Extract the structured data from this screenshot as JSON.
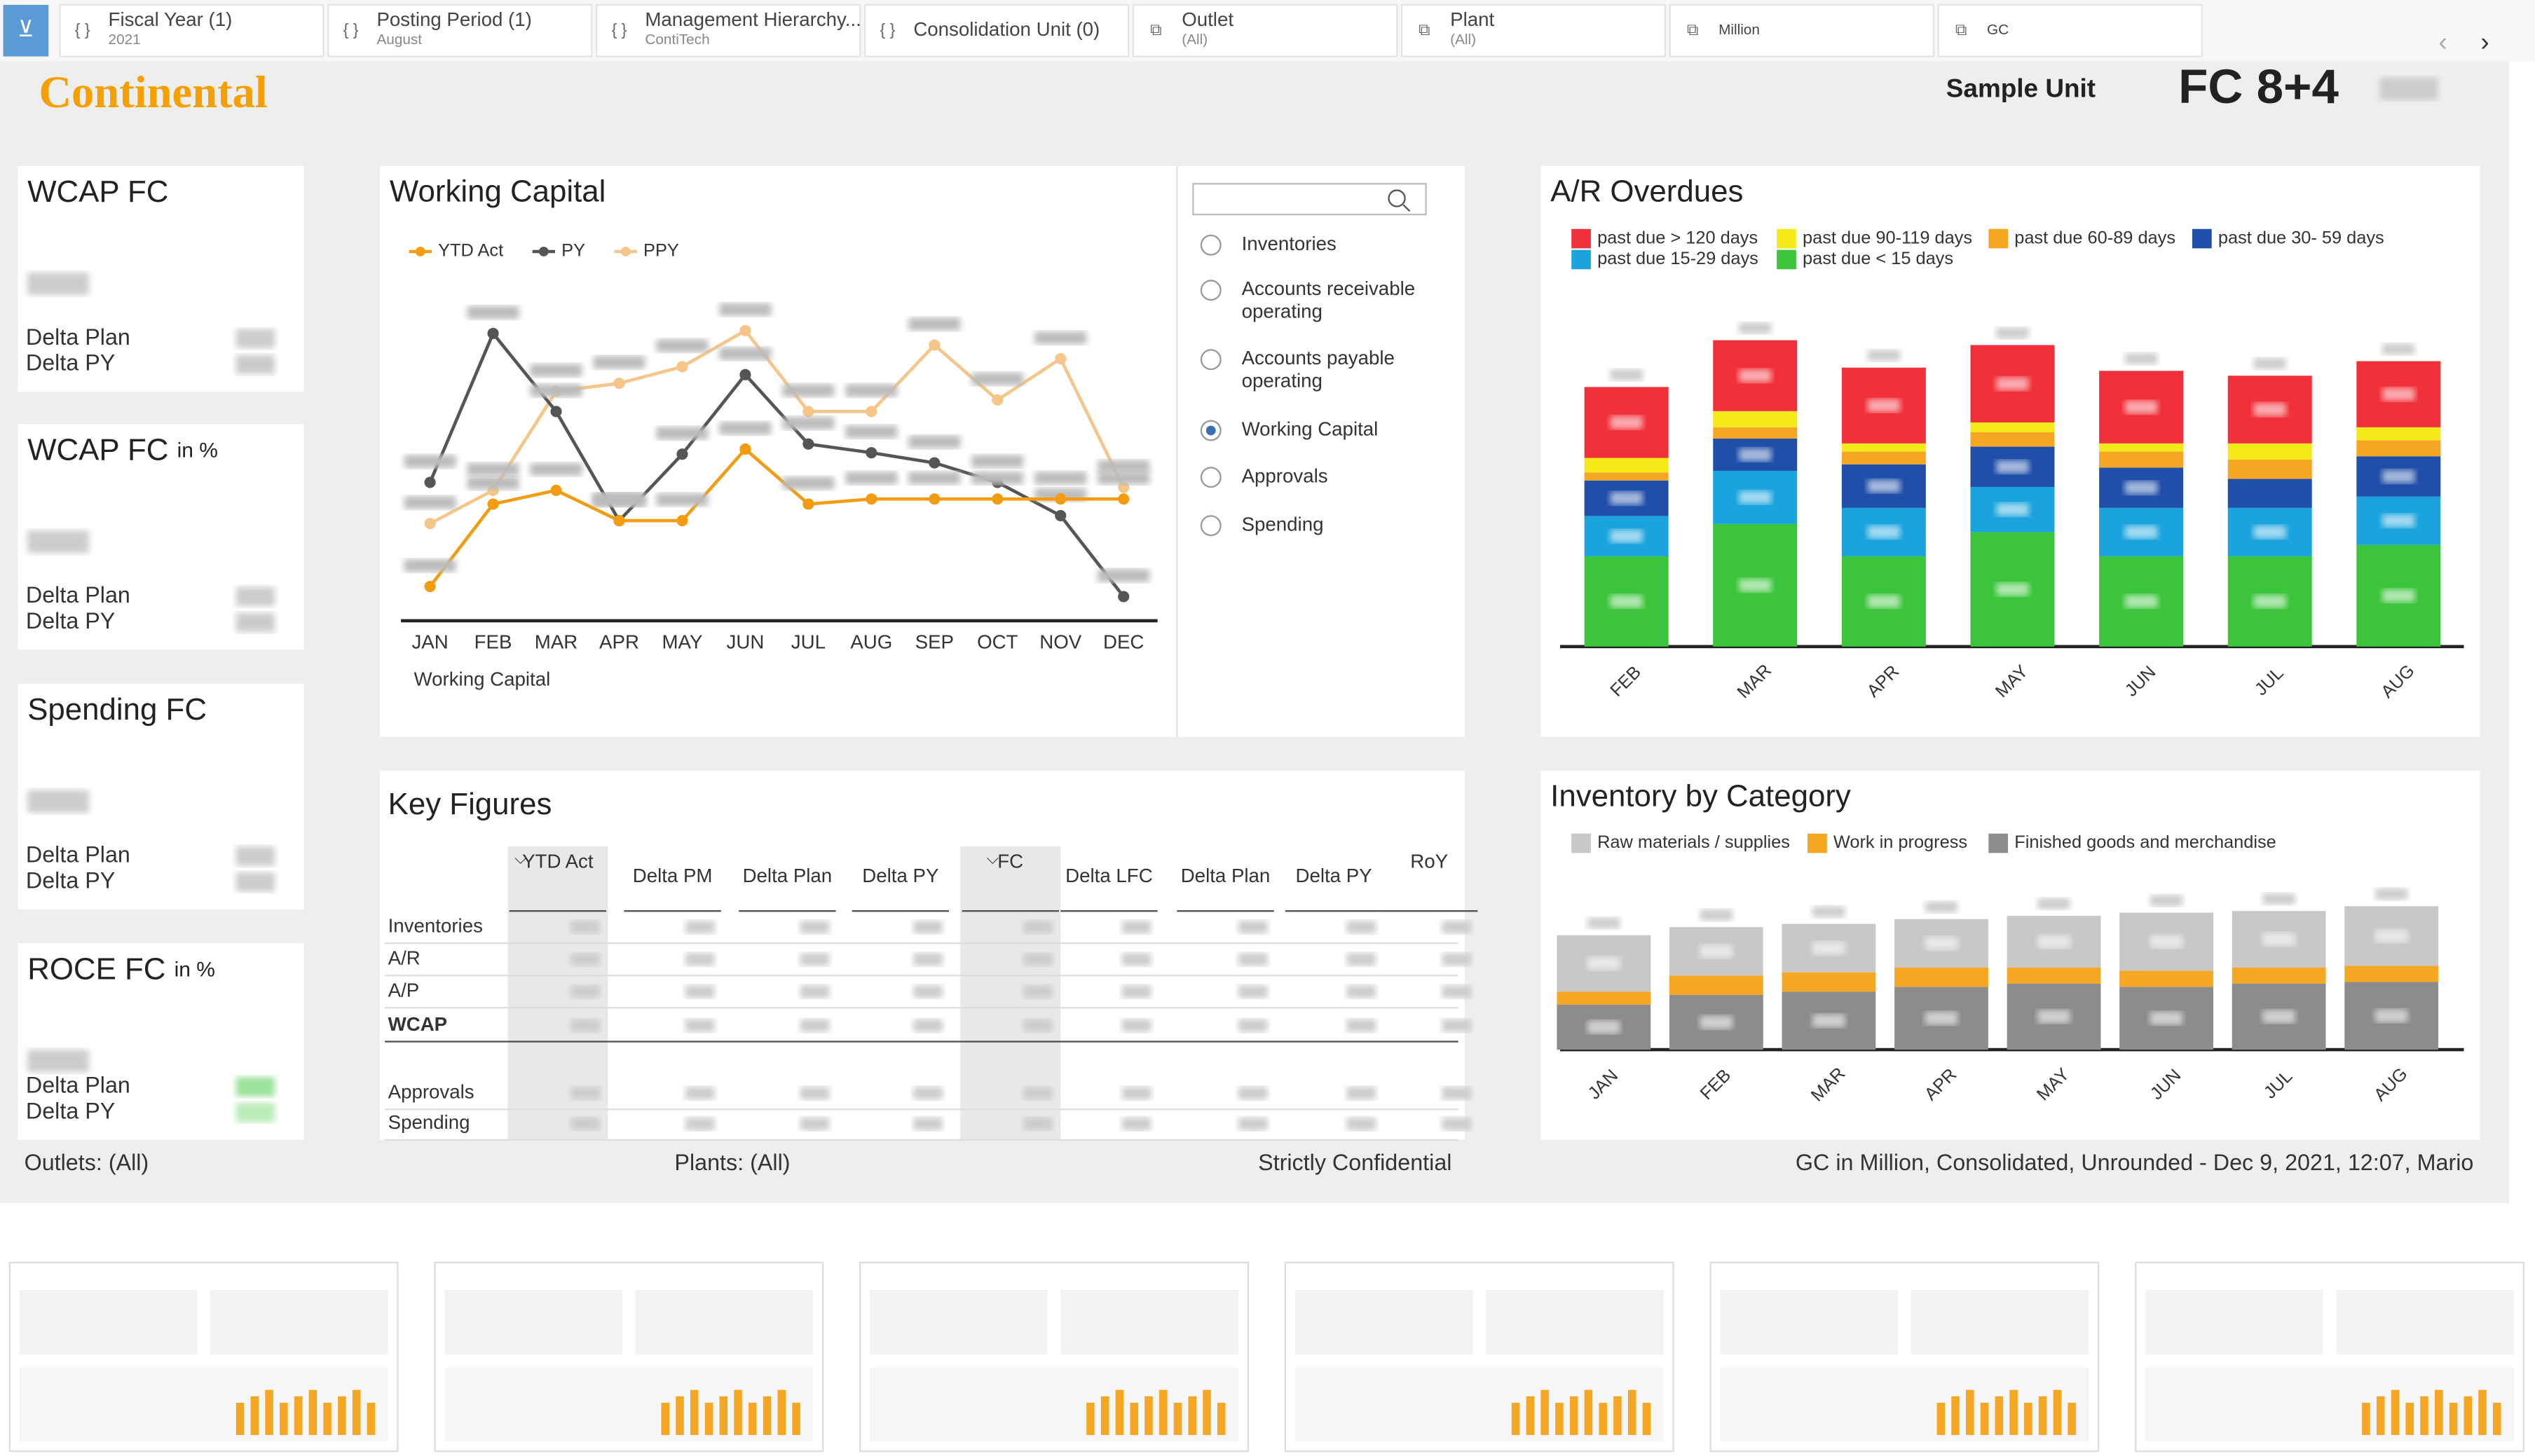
{
  "filters": [
    {
      "label": "Fiscal Year (1)",
      "sub": "2021"
    },
    {
      "label": "Posting Period (1)",
      "sub": "August"
    },
    {
      "label": "Management Hierarchy...",
      "sub": "ContiTech"
    },
    {
      "label": "Consolidation Unit (0)"
    },
    {
      "label": "Outlet",
      "sub": "(All)"
    },
    {
      "label": "Plant",
      "sub": "(All)"
    },
    {
      "label": "Million"
    },
    {
      "label": "GC"
    }
  ],
  "header": {
    "logo": "Continental",
    "unit": "Sample Unit",
    "version": "FC 8+4"
  },
  "cards": [
    {
      "title": "WCAP FC",
      "rows": [
        "Delta Plan",
        "Delta PY"
      ]
    },
    {
      "title": "WCAP FC",
      "suffix": "in %",
      "rows": [
        "Delta Plan",
        "Delta PY"
      ]
    },
    {
      "title": "Spending FC",
      "rows": [
        "Delta Plan",
        "Delta PY"
      ]
    },
    {
      "title": "ROCE FC",
      "suffix": "in %",
      "rows": [
        "Delta Plan",
        "Delta PY"
      ]
    }
  ],
  "selector": {
    "options": [
      "Inventories",
      "Accounts receivable operating",
      "Accounts payable operating",
      "Working Capital",
      "Approvals",
      "Spending"
    ],
    "selected": 3
  },
  "chart_data": [
    {
      "type": "line",
      "title": "Working Capital",
      "x_label": "Working Capital",
      "categories": [
        "JAN",
        "FEB",
        "MAR",
        "APR",
        "MAY",
        "JUN",
        "JUL",
        "AUG",
        "SEP",
        "OCT",
        "NOV",
        "DEC"
      ],
      "series": [
        {
          "name": "YTD Act",
          "color": "#f39c12",
          "values": [
            916,
            1030,
            1049,
            1007,
            1007,
            1106,
            1030,
            1037,
            1037,
            1037,
            1037,
            1037
          ]
        },
        {
          "name": "PY",
          "color": "#555555",
          "values": [
            1060,
            1266,
            1158,
            1007,
            1099,
            1209,
            1113,
            1101,
            1087,
            1060,
            1014,
            902
          ]
        },
        {
          "name": "PPY",
          "color": "#f5c58a",
          "values": [
            1003,
            1049,
            1186,
            1197,
            1220,
            1270,
            1158,
            1158,
            1250,
            1174,
            1231,
            1053
          ]
        }
      ]
    },
    {
      "type": "stacked_bar",
      "title": "A/R Overdues",
      "categories": [
        "FEB",
        "MAR",
        "APR",
        "MAY",
        "JUN",
        "JUL",
        "AUG"
      ],
      "series": [
        {
          "name": "past due > 120 days",
          "color": "#f0303a",
          "values": [
            44,
            44,
            47,
            48,
            45,
            42,
            41
          ]
        },
        {
          "name": "past due 90-119 days",
          "color": "#f4ea1a",
          "values": [
            9,
            10,
            5,
            6,
            5,
            10,
            8
          ]
        },
        {
          "name": "past due 60-89 days",
          "color": "#f5a623",
          "values": [
            5,
            7,
            8,
            9,
            10,
            12,
            10
          ]
        },
        {
          "name": "past due 30- 59 days",
          "color": "#1f4fa8",
          "values": [
            22,
            20,
            27,
            25,
            25,
            18,
            25
          ]
        },
        {
          "name": "past due 15-29 days",
          "color": "#1aa3dc",
          "values": [
            25,
            33,
            30,
            28,
            30,
            30,
            30
          ]
        },
        {
          "name": "past due < 15 days",
          "color": "#3cc43c",
          "values": [
            56,
            76,
            56,
            71,
            56,
            56,
            63
          ]
        }
      ]
    },
    {
      "type": "stacked_bar",
      "title": "Inventory by Category",
      "categories": [
        "JAN",
        "FEB",
        "MAR",
        "APR",
        "MAY",
        "JUN",
        "JUL",
        "AUG"
      ],
      "series": [
        {
          "name": "Raw materials / supplies",
          "color": "#c8c8c8",
          "values": [
            35,
            30,
            30,
            30,
            32,
            36,
            35,
            37
          ]
        },
        {
          "name": "Work in progress",
          "color": "#f5a623",
          "values": [
            8,
            12,
            12,
            12,
            10,
            10,
            10,
            10
          ]
        },
        {
          "name": "Finished goods and merchandise",
          "color": "#8c8c8c",
          "values": [
            28,
            34,
            36,
            39,
            41,
            39,
            41,
            42
          ]
        }
      ]
    }
  ],
  "table": {
    "title": "Key Figures",
    "columns": [
      "YTD Act",
      "Delta PM",
      "Delta Plan",
      "Delta PY",
      "FC",
      "Delta LFC",
      "Delta Plan",
      "Delta PY",
      "RoY"
    ],
    "rows": [
      "Inventories",
      "A/R",
      "A/P",
      "WCAP",
      "Approvals",
      "Spending"
    ]
  },
  "footer": [
    "Outlets: (All)",
    "Plants: (All)",
    "Strictly Confidential",
    "GC in Million, Consolidated, Unrounded - Dec 9, 2021, 12:07, Mario"
  ]
}
